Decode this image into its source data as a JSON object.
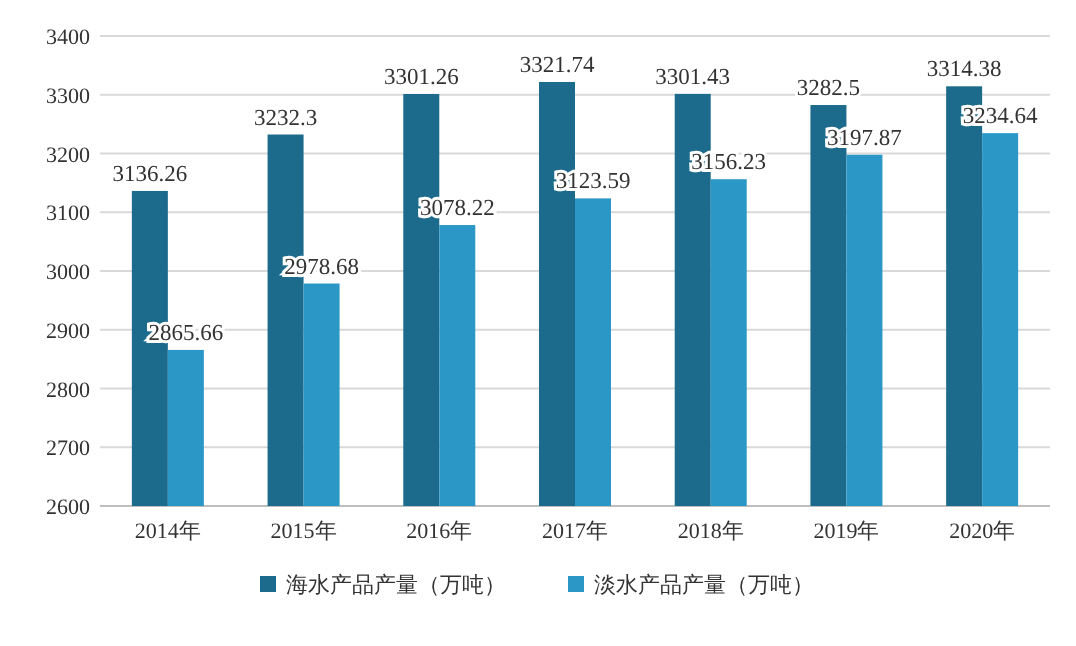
{
  "chart_data": {
    "type": "bar",
    "categories": [
      "2014年",
      "2015年",
      "2016年",
      "2017年",
      "2018年",
      "2019年",
      "2020年"
    ],
    "series": [
      {
        "name": "海水产品产量（万吨）",
        "color": "#1c6b8c",
        "values": [
          3136.26,
          3232.3,
          3301.26,
          3321.74,
          3301.43,
          3282.5,
          3314.38
        ]
      },
      {
        "name": "淡水产品产量（万吨）",
        "color": "#2a97c6",
        "values": [
          2865.66,
          2978.68,
          3078.22,
          3123.59,
          3156.23,
          3197.87,
          3234.64
        ]
      }
    ],
    "ylim": [
      2600,
      3400
    ],
    "yticks": [
      2600,
      2700,
      2800,
      2900,
      3000,
      3100,
      3200,
      3300,
      3400
    ],
    "grid": "y",
    "legend": "bottom",
    "data_labels": true
  }
}
